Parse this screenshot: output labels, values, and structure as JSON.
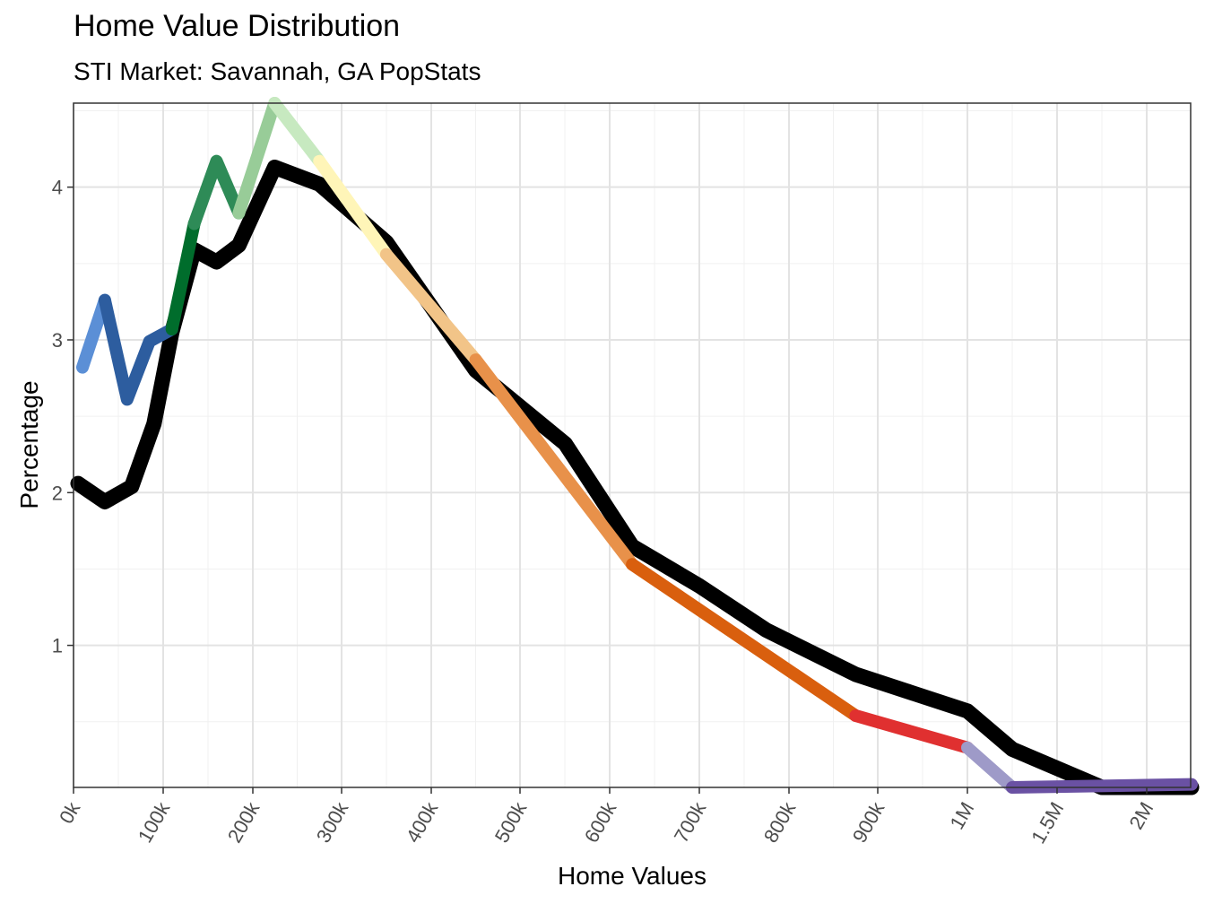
{
  "chart_data": {
    "type": "line",
    "title": "Home Value Distribution",
    "subtitle": "STI Market: Savannah, GA PopStats",
    "xlabel": "Home Values",
    "ylabel": "Percentage",
    "x_ticks": [
      "0k",
      "100k",
      "200k",
      "300k",
      "400k",
      "500k",
      "600k",
      "700k",
      "800k",
      "900k",
      "1M",
      "1.5M",
      "2M"
    ],
    "y_ticks": [
      1,
      2,
      3,
      4
    ],
    "ylim": [
      0.07,
      4.55
    ],
    "grid": true,
    "legend": "none",
    "x_scale": "piecewise: linear 0k-1M, then 500k per tick to 2M",
    "series": [
      {
        "color": "#000000",
        "x": [
          5,
          35,
          65,
          90,
          110,
          135,
          160,
          185,
          225,
          275,
          350,
          450,
          550,
          625,
          700,
          775,
          875,
          1000,
          1250,
          1750,
          2250
        ],
        "y": [
          2.06,
          1.94,
          2.04,
          2.45,
          3.05,
          3.59,
          3.51,
          3.62,
          4.13,
          4.02,
          3.64,
          2.8,
          2.32,
          1.65,
          1.39,
          1.1,
          0.81,
          0.57,
          0.32,
          0.07,
          0.07
        ]
      },
      {
        "color": "#5b8fd6",
        "x": [
          10,
          35
        ],
        "y": [
          2.82,
          3.26
        ]
      },
      {
        "color": "#2d5d9f",
        "x": [
          35,
          60,
          85,
          110
        ],
        "y": [
          3.26,
          2.61,
          2.99,
          3.07
        ]
      },
      {
        "color": "#006d2c",
        "x": [
          110,
          135
        ],
        "y": [
          3.07,
          3.76
        ]
      },
      {
        "color": "#2e8b57",
        "x": [
          135,
          160,
          185
        ],
        "y": [
          3.76,
          4.17,
          3.83
        ]
      },
      {
        "color": "#98cc98",
        "x": [
          185,
          225
        ],
        "y": [
          3.83,
          4.55
        ]
      },
      {
        "color": "#c7e9c0",
        "x": [
          225,
          275
        ],
        "y": [
          4.55,
          4.17
        ]
      },
      {
        "color": "#fff5b8",
        "x": [
          275,
          350
        ],
        "y": [
          4.17,
          3.56
        ]
      },
      {
        "color": "#f2c488",
        "x": [
          350,
          450
        ],
        "y": [
          3.56,
          2.87
        ]
      },
      {
        "color": "#e8914a",
        "x": [
          450,
          625
        ],
        "y": [
          2.87,
          1.53
        ]
      },
      {
        "color": "#d95f0e",
        "x": [
          625,
          875
        ],
        "y": [
          1.53,
          0.54
        ]
      },
      {
        "color": "#e03030",
        "x": [
          875,
          1000
        ],
        "y": [
          0.54,
          0.33
        ]
      },
      {
        "color": "#9e9ac8",
        "x": [
          1000,
          1250
        ],
        "y": [
          0.33,
          0.07
        ]
      },
      {
        "color": "#6a51a3",
        "x": [
          1250,
          2250
        ],
        "y": [
          0.07,
          0.09
        ]
      }
    ]
  }
}
